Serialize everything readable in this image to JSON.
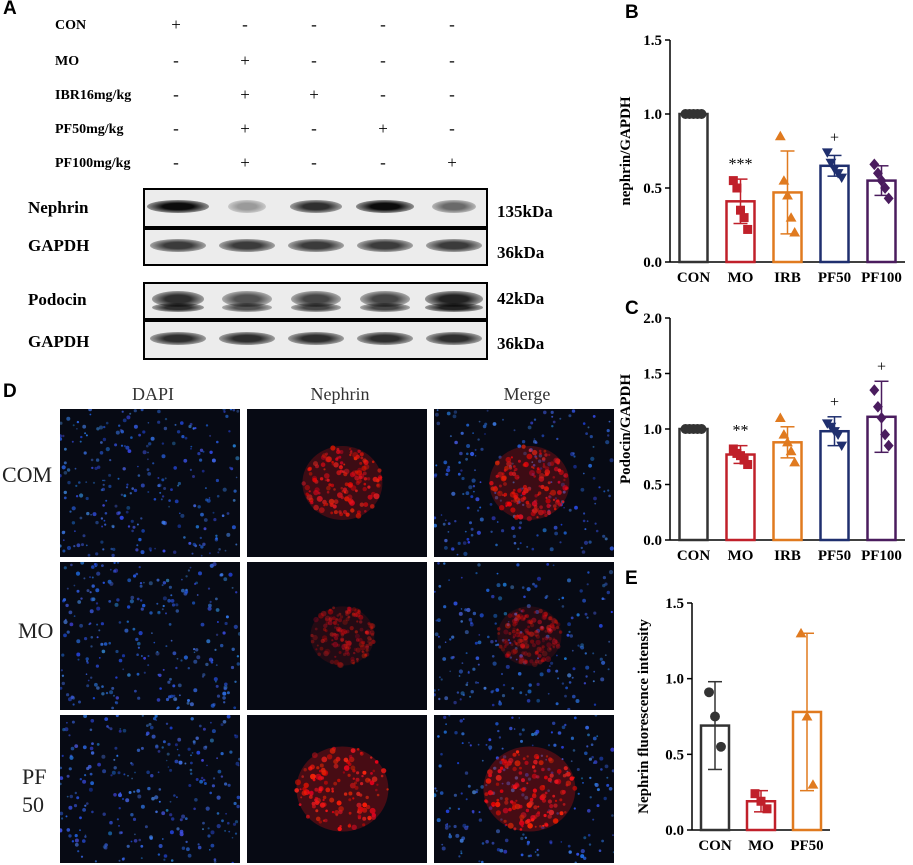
{
  "panels": {
    "A": "A",
    "B": "B",
    "C": "C",
    "D": "D",
    "E": "E"
  },
  "treatments": [
    {
      "label": "CON",
      "signs": [
        "+",
        "-",
        "-",
        "-",
        "-"
      ]
    },
    {
      "label": "MO",
      "signs": [
        "-",
        "+",
        "-",
        "-",
        "-"
      ]
    },
    {
      "label": "IBR16mg/kg",
      "signs": [
        "-",
        "+",
        "+",
        "-",
        "-"
      ]
    },
    {
      "label": "PF50mg/kg",
      "signs": [
        "-",
        "+",
        "-",
        "+",
        "-"
      ]
    },
    {
      "label": "PF100mg/kg",
      "signs": [
        "-",
        "+",
        "-",
        "-",
        "+"
      ]
    }
  ],
  "blots": [
    {
      "label": "Nephrin",
      "kda": "135kDa"
    },
    {
      "label": "GAPDH",
      "kda": "36kDa"
    },
    {
      "label": "Podocin",
      "kda": "42kDa"
    },
    {
      "label": "GAPDH",
      "kda": "36kDa"
    }
  ],
  "if_panel": {
    "columns": [
      "DAPI",
      "Nephrin",
      "Merge"
    ],
    "rows": [
      "COM",
      "MO",
      "PF\n50"
    ]
  },
  "chart_data": [
    {
      "id": "B",
      "type": "bar",
      "categories": [
        "CON",
        "MO",
        "IRB",
        "PF50",
        "PF100"
      ],
      "values": [
        1.0,
        0.41,
        0.47,
        0.65,
        0.55
      ],
      "errors": [
        0.0,
        0.15,
        0.28,
        0.07,
        0.1
      ],
      "points": [
        [
          1,
          1,
          1,
          1,
          1
        ],
        [
          0.55,
          0.5,
          0.35,
          0.3,
          0.22
        ],
        [
          0.85,
          0.55,
          0.45,
          0.3,
          0.2
        ],
        [
          0.74,
          0.67,
          0.63,
          0.6,
          0.57
        ],
        [
          0.66,
          0.6,
          0.55,
          0.5,
          0.43
        ]
      ],
      "colors": [
        "#333333",
        "#c0202a",
        "#e07a1f",
        "#1f2f6e",
        "#4a1c5e"
      ],
      "markers": [
        "circle",
        "square",
        "triangle",
        "triangle-down",
        "diamond"
      ],
      "ylabel": "nephrin/GAPDH",
      "ylim": [
        0,
        1.5
      ],
      "yticks": [
        "0.0",
        "0.5",
        "1.0",
        "1.5"
      ],
      "annotations": [
        "",
        "***",
        "",
        "+",
        ""
      ]
    },
    {
      "id": "C",
      "type": "bar",
      "categories": [
        "CON",
        "MO",
        "IRB",
        "PF50",
        "PF100"
      ],
      "values": [
        1.0,
        0.77,
        0.88,
        0.98,
        1.11
      ],
      "errors": [
        0.0,
        0.08,
        0.14,
        0.13,
        0.32
      ],
      "points": [
        [
          1,
          1,
          1,
          1,
          1
        ],
        [
          0.82,
          0.78,
          0.76,
          0.72,
          0.68
        ],
        [
          1.1,
          0.95,
          0.88,
          0.8,
          0.7
        ],
        [
          1.05,
          1.02,
          0.98,
          0.95,
          0.85
        ],
        [
          1.35,
          1.2,
          1.1,
          0.95,
          0.85
        ]
      ],
      "colors": [
        "#333333",
        "#c0202a",
        "#e07a1f",
        "#1f2f6e",
        "#4a1c5e"
      ],
      "markers": [
        "circle",
        "square",
        "triangle",
        "triangle-down",
        "diamond"
      ],
      "ylabel": "Podocin/GAPDH",
      "ylim": [
        0,
        2.0
      ],
      "yticks": [
        "0.0",
        "0.5",
        "1.0",
        "1.5",
        "2.0"
      ],
      "annotations": [
        "",
        "**",
        "",
        "+",
        "+"
      ]
    },
    {
      "id": "E",
      "type": "bar",
      "categories": [
        "CON",
        "MO",
        "PF50"
      ],
      "values": [
        0.69,
        0.19,
        0.78
      ],
      "errors": [
        0.29,
        0.07,
        0.52
      ],
      "points": [
        [
          0.91,
          0.75,
          0.55
        ],
        [
          0.24,
          0.19,
          0.14
        ],
        [
          1.3,
          0.75,
          0.3
        ]
      ],
      "colors": [
        "#333333",
        "#c0202a",
        "#e07a1f"
      ],
      "markers": [
        "circle",
        "square",
        "triangle"
      ],
      "ylabel": "Nephrin fluorescence intensity",
      "ylim": [
        0,
        1.5
      ],
      "yticks": [
        "0.0",
        "0.5",
        "1.0",
        "1.5"
      ],
      "annotations": [
        "",
        "",
        ""
      ]
    }
  ]
}
